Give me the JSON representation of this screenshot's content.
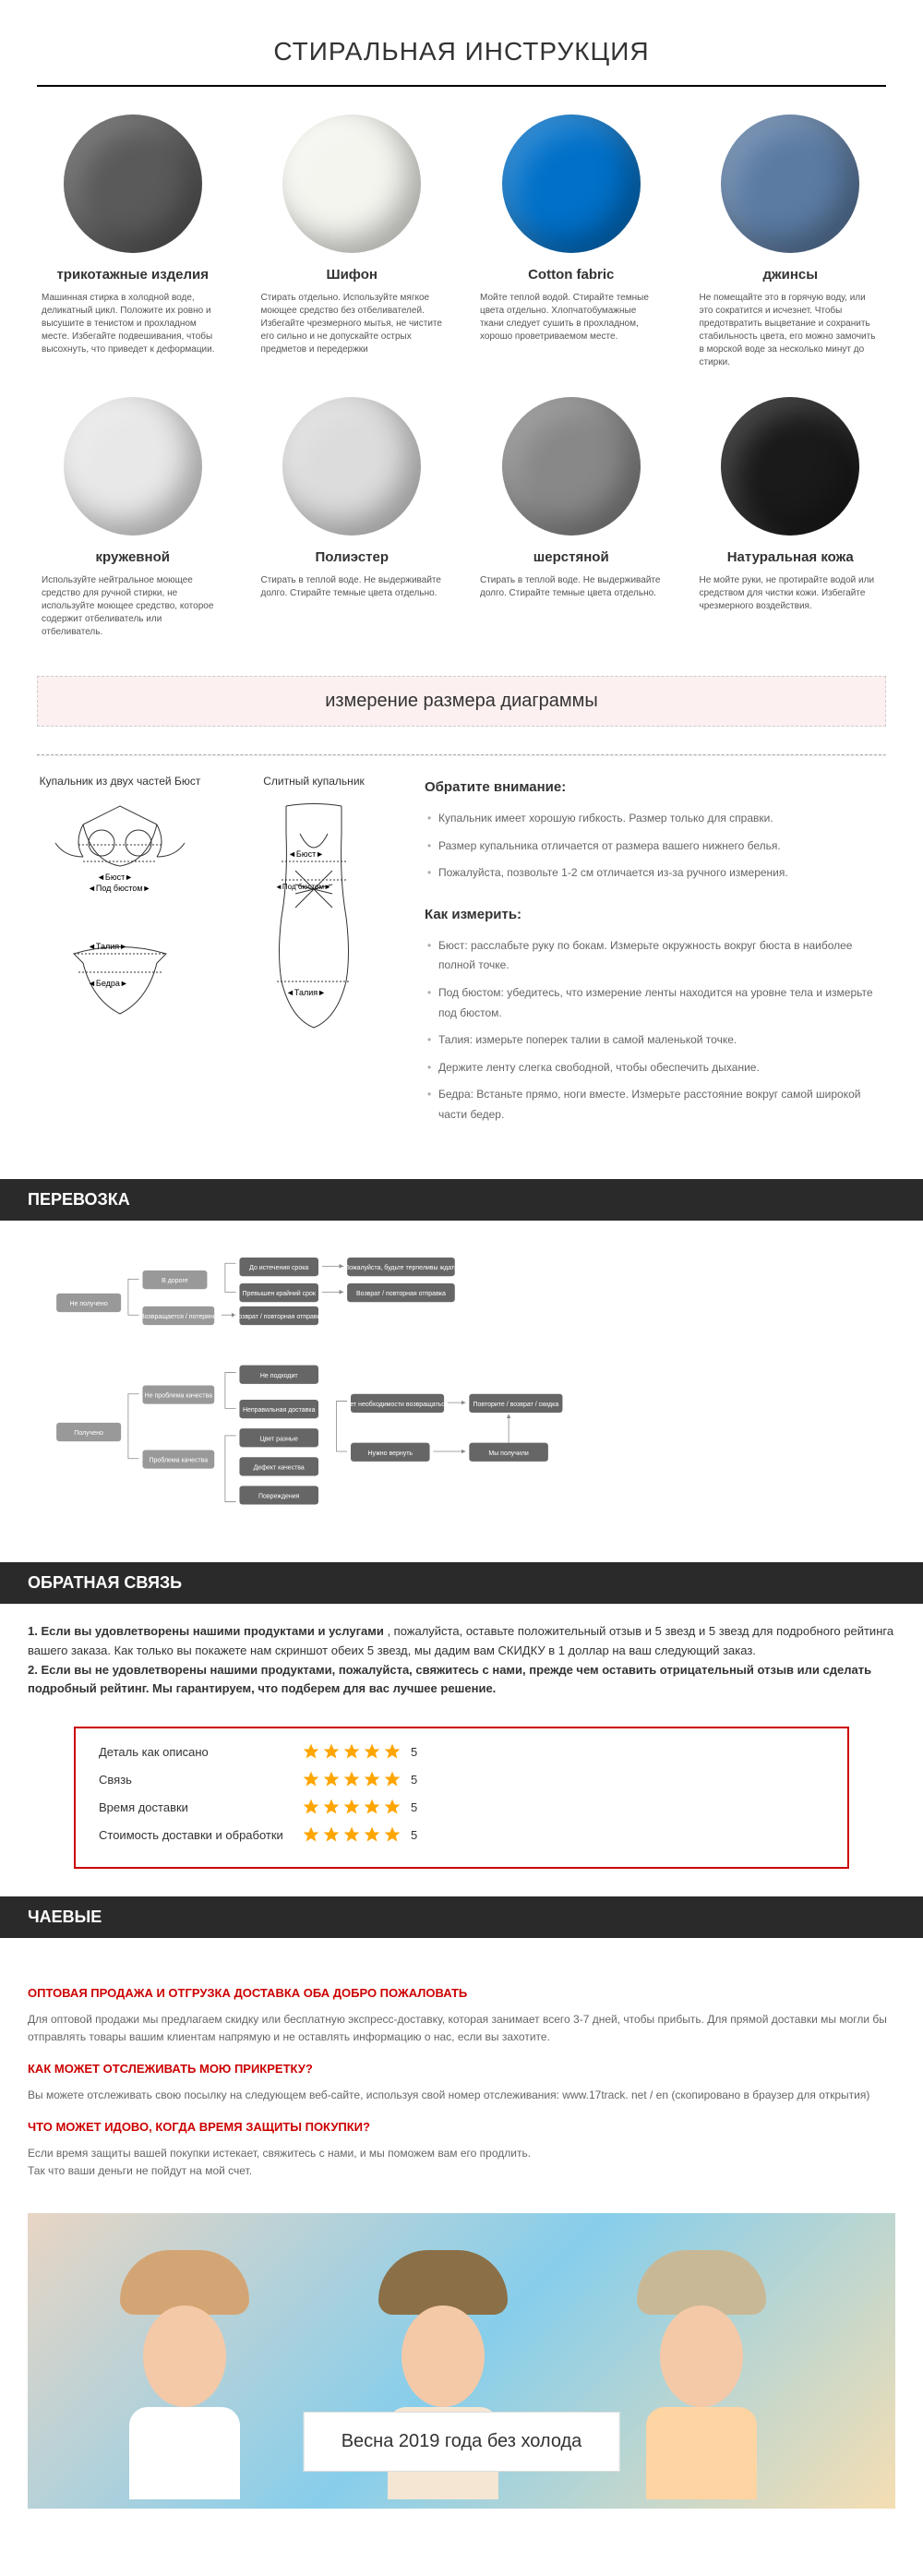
{
  "washing": {
    "title": "СТИРАЛЬНАЯ ИНСТРУКЦИЯ",
    "fabrics": [
      {
        "name": "трикотажные изделия",
        "color": "#5a5a5a",
        "desc": "Машинная стирка в холодной воде, деликатный цикл. Положите их ровно и высушите в тенистом и прохладном месте. Избегайте подвешивания, чтобы высохнуть, что приведет к деформации."
      },
      {
        "name": "Шифон",
        "color": "#f5f5f0",
        "desc": "Стирать отдельно. Используйте мягкое моющее средство без отбеливателей. Избегайте чрезмерного мытья, не чистите его сильно и не допускайте острых предметов и передержки"
      },
      {
        "name": "Cotton fabric",
        "color": "#0070c8",
        "desc": "Мойте теплой водой. Стирайте темные цвета отдельно. Хлопчатобумажные ткани следует сушить в прохладном, хорошо проветриваемом месте."
      },
      {
        "name": "джинсы",
        "color": "#5b7ba3",
        "desc": "Не помещайте это в горячую воду, или это сократится и исчезнет. Чтобы предотвратить выцветание и сохранить стабильность цвета, его можно замочить в морской воде за несколько минут до стирки."
      },
      {
        "name": "кружевной",
        "color": "#e8e8e8",
        "desc": "Используйте нейтральное моющее средство для ручной стирки, не используйте моющее средство, которое содержит отбеливатель или отбеливатель."
      },
      {
        "name": "Полиэстер",
        "color": "#dcdcdc",
        "desc": "Стирать в теплой воде. Не выдерживайте долго. Стирайте темные цвета отдельно."
      },
      {
        "name": "шерстяной",
        "color": "#888888",
        "desc": "Стирать в теплой воде. Не выдерживайте долго. Стирайте темные цвета отдельно."
      },
      {
        "name": "Натуральная кожа",
        "color": "#1a1a1a",
        "desc": "Не мойте руки, не протирайте водой или средством для чистки кожи. Избегайте чрезмерного воздействия."
      }
    ]
  },
  "sizing": {
    "banner_title": "измерение размера диаграммы",
    "diagram1_title": "Купальник из двух частей Бюст",
    "diagram2_title": "Слитный купальник",
    "labels": {
      "bust": "Бюст",
      "underbust": "Под бюстом",
      "waist": "Талия",
      "hips": "Бедра"
    },
    "attention_title": "Обратите внимание:",
    "attention_items": [
      "Купальник имеет хорошую гибкость. Размер только для справки.",
      "Размер купальника отличается от размера вашего нижнего белья.",
      "Пожалуйста, позвольте 1-2 см отличается из-за ручного измерения."
    ],
    "measure_title": "Как измерить:",
    "measure_items": [
      "Бюст: расслабьте руку по бокам. Измерьте окружность вокруг бюста в наиболее полной точке.",
      "Под бюстом: убедитесь, что измерение ленты находится на уровне тела и измерьте под бюстом.",
      "Талия: измерьте поперек талии в самой маленькой точке.",
      "Держите ленту слегка свободной, чтобы обеспечить дыхание.",
      "Бедра: Встаньте прямо, ноги вместе. Измерьте расстояние вокруг самой широкой части бедер."
    ]
  },
  "shipping": {
    "title": "ПЕРЕВОЗКА",
    "nodes": {
      "not_received": "Не получено",
      "received": "Получено",
      "in_transit": "В дороге",
      "returned": "Возвращается / потеряно",
      "before_deadline": "До истечения срока",
      "past_deadline": "Превышен крайний срок",
      "please_wait": "Пожалуйста, будьте терпеливы ждать",
      "refund_resend": "Возврат / повторная отправка",
      "no_quality": "Не проблема качества",
      "quality": "Проблема качества",
      "not_fit": "Не подходит",
      "wrong_delivery": "Неправильная доставка",
      "diff_color": "Цвет разные",
      "defect": "Дефект качества",
      "damage": "Повреждения",
      "no_return": "нет необходимости возвращаться",
      "need_return": "Нужно вернуть",
      "partial_refund": "Повторите / возврат / скидка",
      "we_received": "Мы получили"
    }
  },
  "feedback": {
    "title": "ОБРАТНАЯ СВЯЗЬ",
    "text1_prefix": "1. Если вы удовлетворены нашими продуктами и услугами",
    "text1_rest": " , пожалуйста, оставьте положительный отзыв и 5 звезд и 5 звезд для подробного рейтинга вашего заказа. Как только вы покажете нам скриншот обеих 5 звезд, мы дадим вам СКИДКУ в 1 доллар на ваш следующий заказ.",
    "text2": "2. Если вы не удовлетворены нашими продуктами, пожалуйста, свяжитесь с нами, прежде чем оставить отрицательный отзыв или сделать подробный рейтинг. Мы гарантируем, что подберем для вас лучшее решение.",
    "ratings": [
      {
        "label": "Деталь как описано",
        "score": "5"
      },
      {
        "label": "Связь",
        "score": "5"
      },
      {
        "label": "Время доставки",
        "score": "5"
      },
      {
        "label": "Стоимость доставки и обработки",
        "score": "5"
      }
    ]
  },
  "tips": {
    "title": "ЧАЕВЫЕ",
    "h1": "ОПТОВАЯ ПРОДАЖА И ОТГРУЗКА ДОСТАВКА ОБА ДОБРО ПОЖАЛОВАТЬ",
    "t1": "Для оптовой продажи мы предлагаем скидку или бесплатную экспресс-доставку, которая занимает всего 3-7 дней, чтобы прибыть. Для прямой доставки мы могли бы отправлять товары вашим клиентам напрямую и не оставлять информацию о нас, если вы захотите.",
    "h2": "КАК МОЖЕТ ОТСЛЕЖИВАТЬ МОЮ ПРИКРЕТКУ?",
    "t2": "Вы можете отслеживать свою посылку на следующем веб-сайте, используя свой номер отслеживания: www.17track. net / en (скопировано в браузер для открытия)",
    "h3": "ЧТО МОЖЕТ ИДОВО, КОГДА ВРЕМЯ ЗАЩИТЫ ПОКУПКИ?",
    "t3a": "Если время защиты вашей покупки истекает, свяжитесь с нами, и мы поможем вам его продлить.",
    "t3b": "Так что ваши деньги не пойдут на мой счет."
  },
  "banner": {
    "text": "Весна 2019 года без холода",
    "people_colors": [
      {
        "hat": "#d4a574",
        "body": "#ffffff"
      },
      {
        "hat": "#8b6f47",
        "body": "#f5e6d3"
      },
      {
        "hat": "#c9b896",
        "body": "#ffd4a3"
      }
    ]
  },
  "colors": {
    "star": "#ffa500",
    "header_bg": "#2a2a2a",
    "red_border": "#c00",
    "red_text": "#c00"
  }
}
